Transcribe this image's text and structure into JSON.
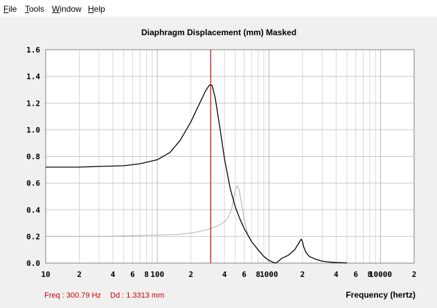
{
  "menu": [
    {
      "pre": "",
      "acc": "F",
      "post": "ile"
    },
    {
      "pre": "",
      "acc": "T",
      "post": "ools"
    },
    {
      "pre": "",
      "acc": "W",
      "post": "indow"
    },
    {
      "pre": "",
      "acc": "H",
      "post": "elp"
    }
  ],
  "chart_title": "Diaphragm Displacement (mm)   Masked",
  "x_axis_title": "Frequency (hertz)",
  "status": {
    "freq": "Freq : 300.79 Hz",
    "dd": "Dd : 1.3313 mm"
  },
  "colors": {
    "primary_curve": "#000000",
    "masked_curve": "#b0b0b0",
    "cursor": "#cc0000",
    "status_text": "#cc0000"
  },
  "chart_data": {
    "type": "line",
    "x_scale": "log",
    "xlim": [
      10,
      20000
    ],
    "ylim": [
      0,
      1.6
    ],
    "grid": true,
    "x_tick_labels": [
      {
        "v": 10,
        "t": "10"
      },
      {
        "v": 20,
        "t": "2"
      },
      {
        "v": 40,
        "t": "4"
      },
      {
        "v": 60,
        "t": "6"
      },
      {
        "v": 80,
        "t": "8"
      },
      {
        "v": 100,
        "t": "100"
      },
      {
        "v": 200,
        "t": "2"
      },
      {
        "v": 400,
        "t": "4"
      },
      {
        "v": 600,
        "t": "6"
      },
      {
        "v": 800,
        "t": "8"
      },
      {
        "v": 1000,
        "t": "1000"
      },
      {
        "v": 2000,
        "t": "2"
      },
      {
        "v": 4000,
        "t": "4"
      },
      {
        "v": 6000,
        "t": "6"
      },
      {
        "v": 8000,
        "t": "8"
      },
      {
        "v": 10000,
        "t": "10000"
      },
      {
        "v": 20000,
        "t": "2"
      }
    ],
    "y_tick_labels": [
      "0.0",
      "0.2",
      "0.4",
      "0.6",
      "0.8",
      "1.0",
      "1.2",
      "1.4",
      "1.6"
    ],
    "cursor_x": 300.79,
    "series": [
      {
        "x": [
          10,
          20,
          30,
          50,
          70,
          100,
          130,
          160,
          200,
          240,
          270,
          290,
          300,
          310,
          330,
          360,
          400,
          450,
          500,
          550,
          600,
          700,
          800,
          900,
          1000,
          1100,
          1150,
          1200,
          1300,
          1500,
          1700,
          1850,
          1950,
          2000,
          2050,
          2150,
          2300,
          2600,
          3000,
          3500,
          4000,
          5000
        ],
        "y": [
          0.72,
          0.72,
          0.725,
          0.73,
          0.745,
          0.775,
          0.83,
          0.92,
          1.06,
          1.2,
          1.29,
          1.33,
          1.34,
          1.33,
          1.24,
          1.04,
          0.78,
          0.56,
          0.42,
          0.33,
          0.26,
          0.16,
          0.1,
          0.05,
          0.02,
          0.005,
          0.0,
          0.01,
          0.035,
          0.06,
          0.1,
          0.15,
          0.18,
          0.16,
          0.12,
          0.08,
          0.05,
          0.03,
          0.015,
          0.008,
          0.004,
          0.002
        ]
      },
      {
        "x": [
          10,
          30,
          60,
          100,
          150,
          200,
          250,
          300,
          350,
          400,
          430,
          460,
          480,
          500,
          520,
          540,
          570,
          600,
          650,
          700
        ],
        "y": [
          0.2,
          0.2,
          0.205,
          0.21,
          0.215,
          0.225,
          0.24,
          0.26,
          0.28,
          0.31,
          0.34,
          0.4,
          0.47,
          0.55,
          0.58,
          0.55,
          0.44,
          0.33,
          0.2,
          0.16
        ]
      }
    ]
  }
}
